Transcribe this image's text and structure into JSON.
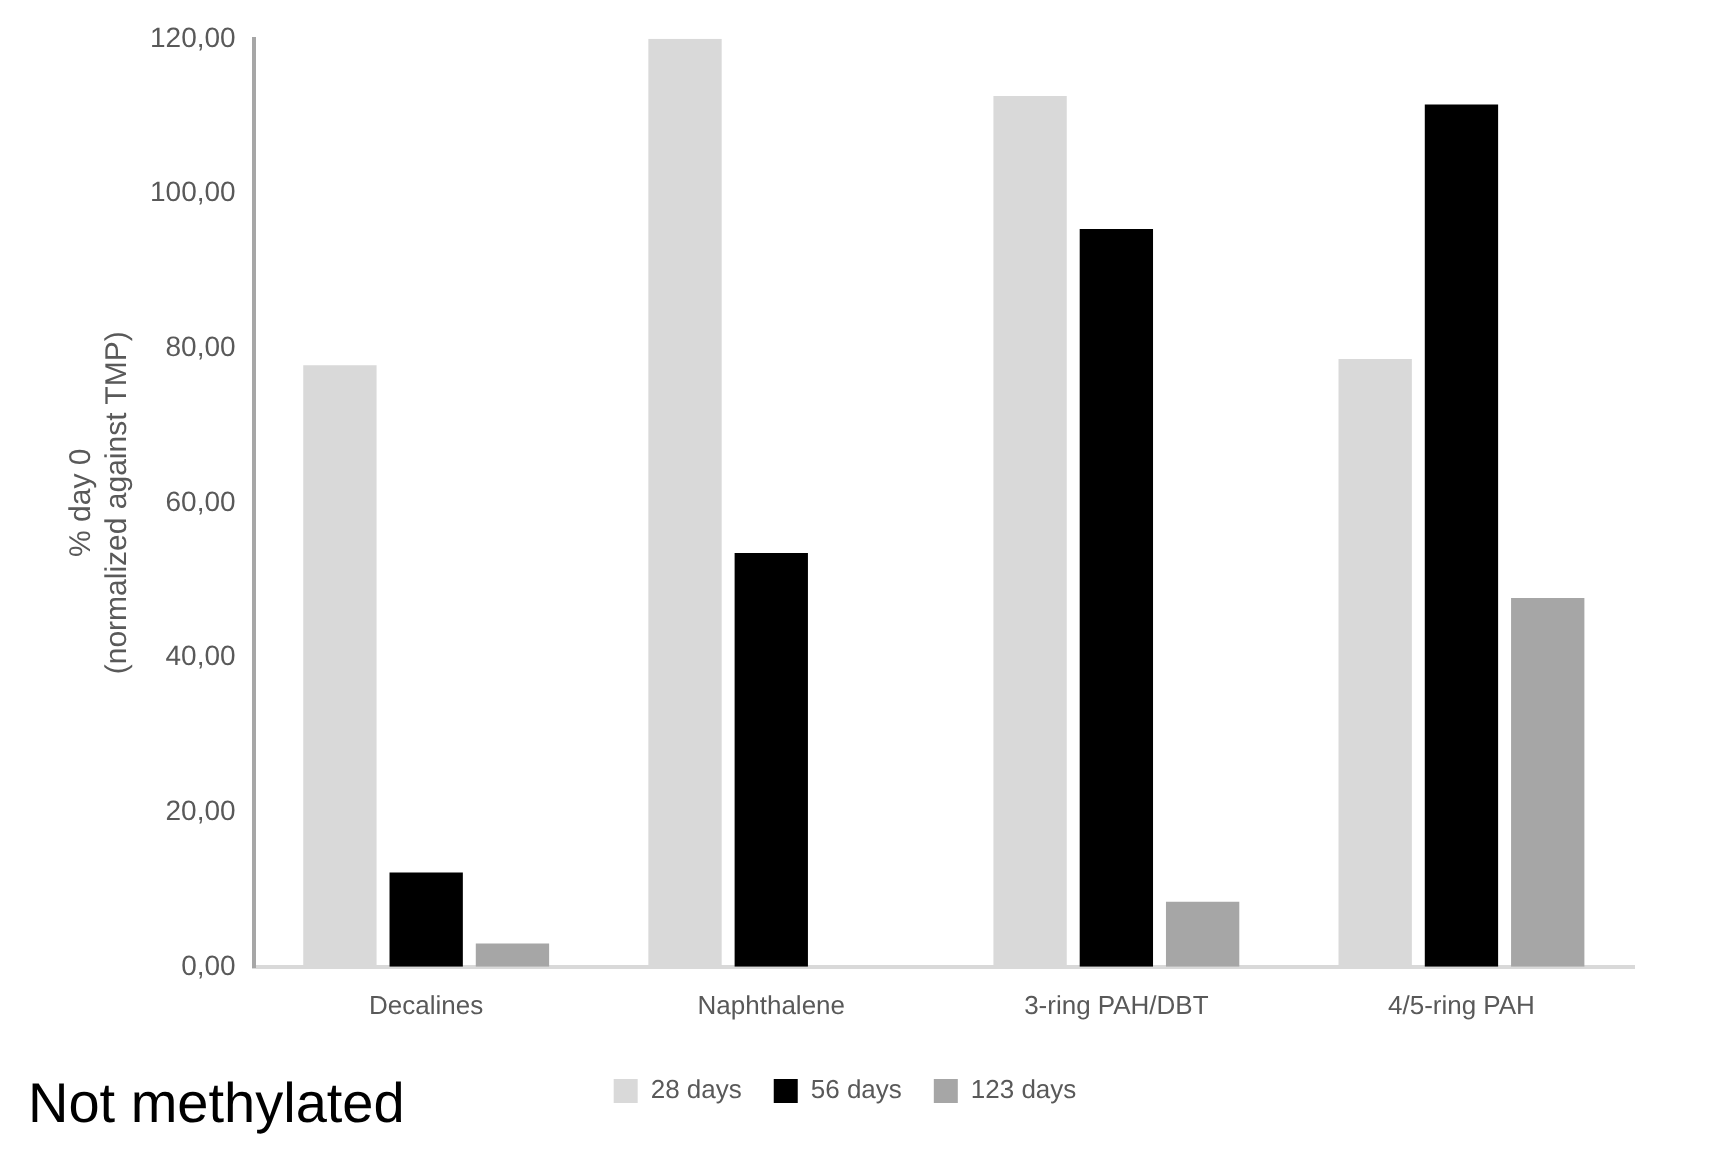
{
  "chart_data": {
    "type": "bar",
    "ylabel": "% day 0\n(normalized against TMP)",
    "categories": [
      "Decalines",
      "Naphthalene",
      "3-ring PAH/DBT",
      "4/5-ring PAH"
    ],
    "series": [
      {
        "name": "28 days",
        "color": "#d9d9d9",
        "values": [
          77.8,
          120,
          112.6,
          78.6
        ]
      },
      {
        "name": "56 days",
        "color": "#000000",
        "values": [
          12.2,
          53.5,
          95.4,
          111.5
        ]
      },
      {
        "name": "123 days",
        "color": "#a6a6a6",
        "values": [
          3.0,
          null,
          8.4,
          47.7
        ]
      }
    ],
    "ylim": [
      0,
      120
    ],
    "yticks": [
      {
        "value": 0,
        "label": "0,00"
      },
      {
        "value": 20,
        "label": "20,00"
      },
      {
        "value": 40,
        "label": "40,00"
      },
      {
        "value": 60,
        "label": "60,00"
      },
      {
        "value": 80,
        "label": "80,00"
      },
      {
        "value": 100,
        "label": "100,00"
      },
      {
        "value": 120,
        "label": "120,00"
      }
    ],
    "grid": false,
    "legend": "bottom",
    "annotations": [
      "Not methylated"
    ]
  }
}
